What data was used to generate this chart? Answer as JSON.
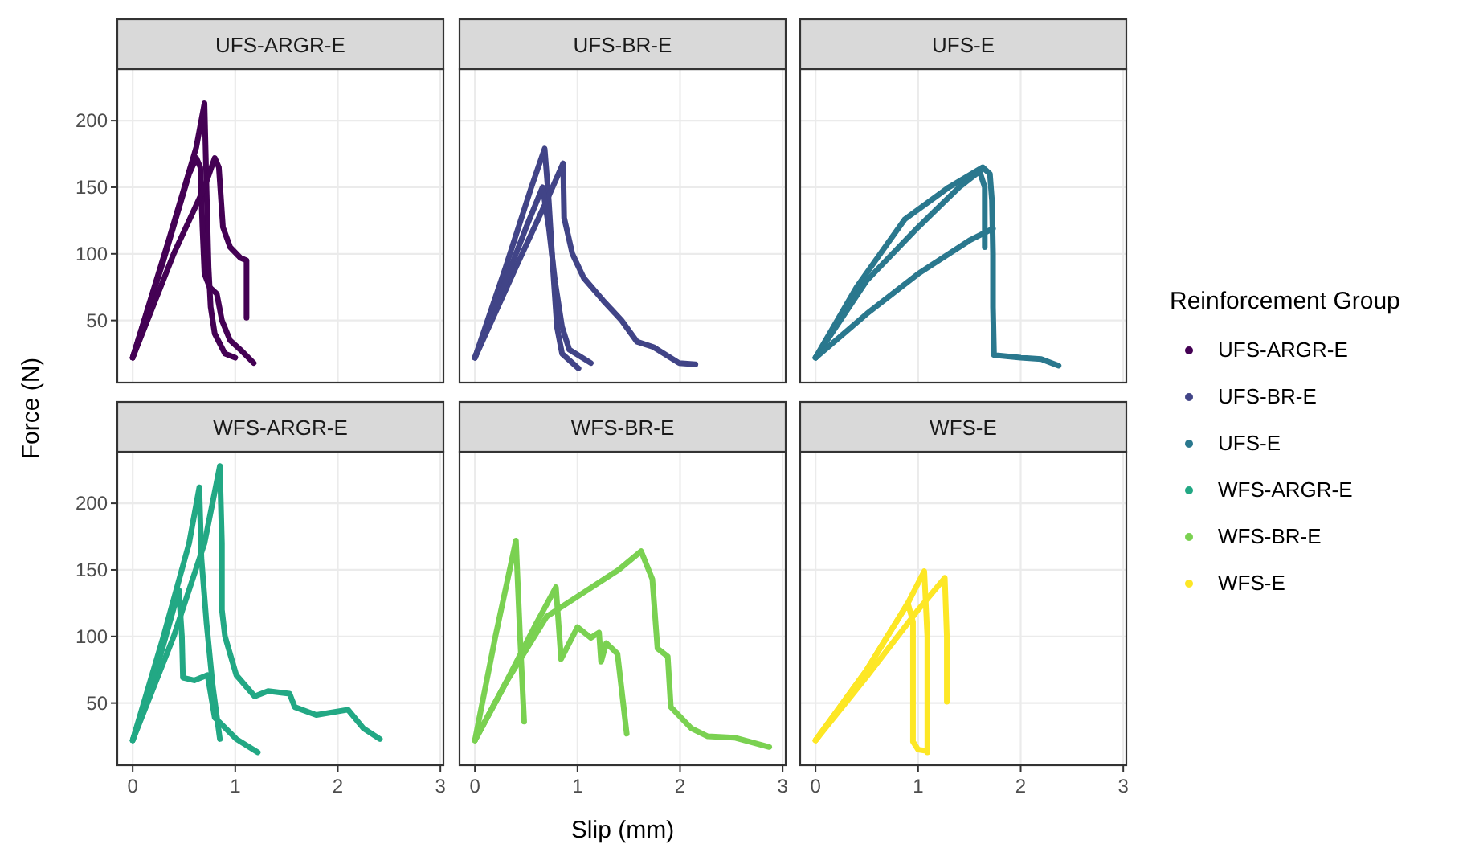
{
  "chart_data": [
    {
      "type": "line",
      "title": "UFS-ARGR-E",
      "ylabel": "Force (N)",
      "legend_title": "Reinforcement Group",
      "legend": "right",
      "grid": true,
      "tick_labels": "y",
      "xlim": [
        -0.15,
        3.03
      ],
      "ylim": [
        3.3,
        238.7
      ],
      "xticks": [
        0,
        1,
        2,
        3
      ],
      "yticks": [
        50,
        100,
        150,
        200
      ],
      "series": [
        {
          "name": "UFS-ARGR-E",
          "color": "#440154",
          "x": [
            0,
            0.35,
            0.62,
            0.7,
            0.72,
            0.74,
            0.76,
            0.8,
            0.9,
            1.0
          ],
          "values": [
            22,
            110,
            180,
            213,
            150,
            90,
            60,
            40,
            25,
            22
          ]
        },
        {
          "color": "#440154",
          "x": [
            0,
            0.3,
            0.55,
            0.62,
            0.66,
            0.68,
            0.7,
            0.75,
            0.82,
            0.87,
            0.95,
            1.05,
            1.18
          ],
          "values": [
            22,
            95,
            160,
            172,
            165,
            120,
            85,
            75,
            70,
            50,
            35,
            28,
            18
          ]
        },
        {
          "color": "#440154",
          "x": [
            0,
            0.4,
            0.7,
            0.8,
            0.84,
            0.88,
            0.95,
            1.05,
            1.11,
            1.11
          ],
          "values": [
            22,
            100,
            150,
            172,
            165,
            120,
            105,
            97,
            95,
            52
          ]
        }
      ]
    },
    {
      "type": "line",
      "title": "UFS-BR-E",
      "legend": "right",
      "grid": true,
      "tick_labels": false,
      "xlim": [
        -0.15,
        3.03
      ],
      "ylim": [
        3.3,
        238.7
      ],
      "xticks": [
        0,
        1,
        2,
        3
      ],
      "yticks": [
        50,
        100,
        150,
        200
      ],
      "series": [
        {
          "name": "UFS-BR-E",
          "color": "#414487",
          "x": [
            0,
            0.3,
            0.55,
            0.68,
            0.72,
            0.76,
            0.8,
            0.85,
            1.01
          ],
          "values": [
            22,
            90,
            150,
            179,
            140,
            90,
            45,
            25,
            14
          ]
        },
        {
          "color": "#414487",
          "x": [
            0,
            0.4,
            0.7,
            0.86,
            0.87,
            0.95,
            1.06,
            1.25,
            1.43,
            1.58,
            1.74,
            1.99,
            2.15
          ],
          "values": [
            22,
            90,
            140,
            168,
            127,
            100,
            82,
            65,
            50,
            34,
            30,
            18,
            17
          ]
        },
        {
          "color": "#414487",
          "x": [
            0,
            0.3,
            0.5,
            0.66,
            0.72,
            0.78,
            0.85,
            0.92,
            1.13
          ],
          "values": [
            22,
            80,
            120,
            150,
            120,
            80,
            45,
            28,
            18
          ]
        }
      ]
    },
    {
      "type": "line",
      "title": "UFS-E",
      "legend": "right",
      "grid": true,
      "tick_labels": false,
      "xlim": [
        -0.15,
        3.03
      ],
      "ylim": [
        3.3,
        238.7
      ],
      "xticks": [
        0,
        1,
        2,
        3
      ],
      "yticks": [
        50,
        100,
        150,
        200
      ],
      "series": [
        {
          "name": "UFS-E",
          "color": "#2a788e",
          "x": [
            0,
            0.4,
            0.87,
            1.3,
            1.63,
            1.7,
            1.72,
            1.73,
            1.73,
            1.74,
            2.0,
            2.2,
            2.37
          ],
          "values": [
            22,
            75,
            126,
            150,
            165,
            160,
            140,
            100,
            60,
            24,
            22,
            21,
            16
          ]
        },
        {
          "color": "#2a788e",
          "x": [
            0,
            0.5,
            1.0,
            1.4,
            1.6,
            1.65,
            1.65,
            1.65
          ],
          "values": [
            22,
            80,
            120,
            150,
            162,
            150,
            120,
            105
          ]
        },
        {
          "color": "#2a788e",
          "x": [
            0,
            0.5,
            1.0,
            1.5,
            1.73
          ],
          "values": [
            22,
            55,
            85,
            110,
            119
          ]
        }
      ]
    },
    {
      "type": "line",
      "title": "WFS-ARGR-E",
      "legend": "right",
      "grid": true,
      "xlim": [
        -0.15,
        3.03
      ],
      "ylim": [
        3.3,
        238.7
      ],
      "xticks": [
        0,
        1,
        2,
        3
      ],
      "yticks": [
        50,
        100,
        150,
        200
      ],
      "series": [
        {
          "name": "WFS-ARGR-E",
          "color": "#22a884",
          "x": [
            0,
            0.3,
            0.55,
            0.65,
            0.67,
            0.72,
            0.78,
            0.85
          ],
          "values": [
            22,
            100,
            170,
            212,
            159,
            110,
            63,
            23
          ]
        },
        {
          "color": "#22a884",
          "x": [
            0,
            0.4,
            0.7,
            0.85,
            0.87,
            0.87,
            0.9,
            1.01,
            1.19,
            1.32,
            1.53,
            1.58,
            1.79,
            2.1,
            2.25,
            2.41
          ],
          "values": [
            22,
            100,
            170,
            228,
            170,
            120,
            100,
            71,
            55,
            59,
            57,
            47,
            41,
            45,
            31,
            23
          ]
        },
        {
          "color": "#22a884",
          "x": [
            0,
            0.25,
            0.45,
            0.48,
            0.49,
            0.6,
            0.73,
            0.8,
            1.01,
            1.22
          ],
          "values": [
            22,
            80,
            135,
            100,
            69,
            67,
            71,
            39,
            23,
            13
          ]
        }
      ]
    },
    {
      "type": "line",
      "title": "WFS-BR-E",
      "xlabel": "Slip (mm)",
      "legend": "right",
      "grid": true,
      "tick_labels": "x",
      "xlim": [
        -0.15,
        3.03
      ],
      "ylim": [
        3.3,
        238.7
      ],
      "xticks": [
        0,
        1,
        2,
        3
      ],
      "yticks": [
        50,
        100,
        150,
        200
      ],
      "series": [
        {
          "name": "WFS-BR-E",
          "color": "#7ad151",
          "x": [
            0,
            0.2,
            0.4,
            0.44,
            0.48
          ],
          "values": [
            22,
            100,
            172,
            100,
            36
          ]
        },
        {
          "color": "#7ad151",
          "x": [
            0,
            0.3,
            0.6,
            0.79,
            0.84,
            1.0,
            1.13,
            1.21,
            1.23,
            1.28,
            1.39,
            1.48
          ],
          "values": [
            22,
            65,
            110,
            137,
            83,
            107,
            99,
            103,
            81,
            95,
            87,
            27
          ]
        },
        {
          "color": "#7ad151",
          "x": [
            0,
            0.3,
            0.7,
            1.0,
            1.4,
            1.62,
            1.73,
            1.78,
            1.88,
            1.91,
            2.11,
            2.27,
            2.53,
            2.87
          ],
          "values": [
            22,
            65,
            115,
            130,
            150,
            164,
            143,
            91,
            85,
            47,
            31,
            25,
            24,
            17
          ]
        }
      ]
    },
    {
      "type": "line",
      "title": "WFS-E",
      "legend": "right",
      "grid": true,
      "tick_labels": "x",
      "xlim": [
        -0.15,
        3.03
      ],
      "ylim": [
        3.3,
        238.7
      ],
      "xticks": [
        0,
        1,
        2,
        3
      ],
      "yticks": [
        50,
        100,
        150,
        200
      ],
      "series": [
        {
          "name": "WFS-E",
          "color": "#fde725",
          "x": [
            0,
            0.5,
            0.9,
            1.06,
            1.09,
            1.09,
            1.09
          ],
          "values": [
            22,
            75,
            125,
            149,
            100,
            50,
            13
          ]
        },
        {
          "color": "#fde725",
          "x": [
            0,
            0.5,
            1.0,
            1.26,
            1.28,
            1.28
          ],
          "values": [
            22,
            70,
            120,
            144,
            100,
            51
          ]
        },
        {
          "color": "#fde725",
          "x": [
            0,
            0.5,
            0.9,
            0.95,
            0.95,
            0.95,
            1.0,
            1.09
          ],
          "values": [
            22,
            75,
            125,
            111,
            60,
            21,
            15,
            14
          ]
        }
      ]
    }
  ]
}
